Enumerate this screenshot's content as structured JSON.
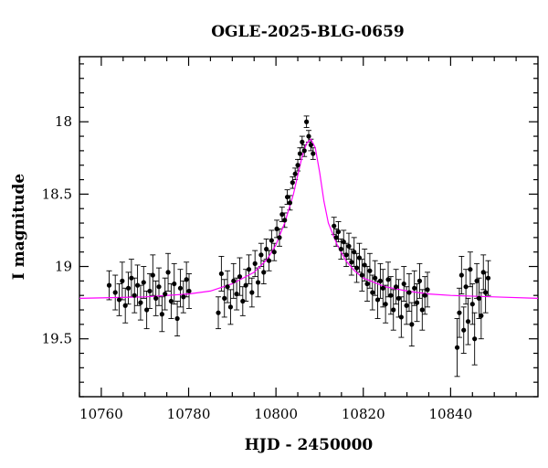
{
  "chart_data": {
    "type": "scatter",
    "title": "OGLE-2025-BLG-0659",
    "xlabel": "HJD - 2450000",
    "ylabel": "I magnitude",
    "xlim": [
      10755,
      10860
    ],
    "ylim": [
      19.9,
      17.55
    ],
    "y_inverted": true,
    "x_ticks": [
      10760,
      10780,
      10800,
      10820,
      10840
    ],
    "y_ticks": [
      18,
      18.5,
      19,
      19.5
    ],
    "x_tick_labels": [
      "10760",
      "10780",
      "10800",
      "10820",
      "10840"
    ],
    "y_tick_labels": [
      "18",
      "18.5",
      "19",
      "19.5"
    ],
    "grid": false,
    "colors": {
      "data": "#000000",
      "model": "#ff00ff"
    },
    "model": {
      "name": "",
      "x": [
        10755,
        10770,
        10780,
        10785,
        10790,
        10795,
        10798,
        10800,
        10802,
        10804,
        10805,
        10806,
        10807,
        10808,
        10809,
        10810,
        10811,
        10812,
        10814,
        10816,
        10818,
        10820,
        10825,
        10830,
        10835,
        10840,
        10850,
        10860
      ],
      "y": [
        19.22,
        19.21,
        19.19,
        19.17,
        19.12,
        19.04,
        18.95,
        18.85,
        18.7,
        18.5,
        18.37,
        18.24,
        18.15,
        18.12,
        18.18,
        18.35,
        18.55,
        18.7,
        18.85,
        18.96,
        19.03,
        19.08,
        19.14,
        19.17,
        19.19,
        19.2,
        19.21,
        19.22
      ]
    },
    "series": [
      {
        "name": "",
        "x": [
          10761.8,
          10763.2,
          10764.1,
          10764.8,
          10765.5,
          10766.2,
          10766.9,
          10767.6,
          10768.3,
          10769.0,
          10769.7,
          10770.4,
          10771.1,
          10771.8,
          10772.5,
          10773.2,
          10773.9,
          10774.6,
          10775.3,
          10776.0,
          10776.7,
          10777.4,
          10778.1,
          10778.8,
          10779.5,
          10780.1,
          10786.8,
          10787.5,
          10788.2,
          10788.9,
          10789.6,
          10790.3,
          10791.0,
          10791.7,
          10792.4,
          10793.1,
          10793.8,
          10794.5,
          10795.2,
          10795.9,
          10796.6,
          10797.2,
          10797.8,
          10798.4,
          10799.0,
          10799.6,
          10800.2,
          10800.8,
          10801.4,
          10802.0,
          10802.6,
          10803.2,
          10803.8,
          10804.4,
          10805.0,
          10805.5,
          10806.0,
          10806.5,
          10807.0,
          10807.5,
          10808.0,
          10808.5,
          10813.3,
          10813.8,
          10814.3,
          10814.9,
          10815.5,
          10816.1,
          10816.7,
          10817.3,
          10817.9,
          10818.5,
          10819.1,
          10819.7,
          10820.3,
          10820.9,
          10821.5,
          10822.1,
          10822.7,
          10823.3,
          10823.9,
          10824.5,
          10825.1,
          10825.7,
          10826.3,
          10826.9,
          10827.5,
          10828.1,
          10828.7,
          10829.3,
          10829.9,
          10830.5,
          10831.1,
          10831.7,
          10832.3,
          10832.9,
          10833.5,
          10834.1,
          10834.7,
          10841.5,
          10842.0,
          10842.5,
          10843.0,
          10843.5,
          10844.0,
          10844.5,
          10845.0,
          10845.5,
          10846.0,
          10846.5,
          10847.0,
          10847.5,
          10848.0,
          10848.6
        ],
        "y": [
          19.13,
          19.18,
          19.23,
          19.1,
          19.27,
          19.15,
          19.08,
          19.2,
          19.13,
          19.25,
          19.11,
          19.3,
          19.17,
          19.06,
          19.22,
          19.14,
          19.33,
          19.19,
          19.04,
          19.24,
          19.12,
          19.36,
          19.15,
          19.21,
          19.09,
          19.17,
          19.32,
          19.05,
          19.22,
          19.14,
          19.28,
          19.1,
          19.19,
          19.07,
          19.24,
          19.13,
          19.02,
          19.18,
          18.98,
          19.11,
          18.92,
          19.04,
          18.88,
          18.96,
          18.82,
          18.9,
          18.74,
          18.8,
          18.64,
          18.68,
          18.52,
          18.56,
          18.42,
          18.36,
          18.3,
          18.22,
          18.14,
          18.2,
          18.0,
          18.1,
          18.16,
          18.22,
          18.72,
          18.8,
          18.76,
          18.88,
          18.83,
          18.92,
          18.86,
          18.97,
          18.9,
          19.01,
          18.94,
          19.06,
          18.99,
          19.12,
          19.03,
          19.18,
          19.08,
          19.23,
          19.1,
          19.15,
          19.26,
          19.09,
          19.2,
          19.3,
          19.14,
          19.22,
          19.35,
          19.12,
          19.27,
          19.18,
          19.4,
          19.15,
          19.25,
          19.1,
          19.3,
          19.2,
          19.16,
          19.56,
          19.32,
          19.06,
          19.44,
          19.14,
          19.38,
          19.02,
          19.26,
          19.5,
          19.1,
          19.22,
          19.34,
          19.04,
          19.18,
          19.08
        ],
        "yerr": [
          0.1,
          0.12,
          0.11,
          0.13,
          0.12,
          0.11,
          0.13,
          0.12,
          0.14,
          0.12,
          0.11,
          0.13,
          0.12,
          0.14,
          0.12,
          0.13,
          0.12,
          0.11,
          0.13,
          0.12,
          0.14,
          0.12,
          0.13,
          0.11,
          0.12,
          0.12,
          0.11,
          0.12,
          0.13,
          0.11,
          0.12,
          0.12,
          0.11,
          0.13,
          0.1,
          0.11,
          0.1,
          0.1,
          0.09,
          0.1,
          0.08,
          0.08,
          0.07,
          0.07,
          0.07,
          0.06,
          0.06,
          0.06,
          0.05,
          0.05,
          0.05,
          0.05,
          0.04,
          0.04,
          0.04,
          0.04,
          0.04,
          0.04,
          0.04,
          0.04,
          0.04,
          0.04,
          0.06,
          0.06,
          0.07,
          0.07,
          0.08,
          0.08,
          0.09,
          0.09,
          0.1,
          0.1,
          0.1,
          0.11,
          0.11,
          0.12,
          0.12,
          0.12,
          0.12,
          0.13,
          0.12,
          0.13,
          0.13,
          0.12,
          0.13,
          0.14,
          0.12,
          0.13,
          0.14,
          0.12,
          0.13,
          0.13,
          0.15,
          0.12,
          0.13,
          0.12,
          0.14,
          0.13,
          0.12,
          0.2,
          0.17,
          0.13,
          0.16,
          0.12,
          0.16,
          0.12,
          0.14,
          0.18,
          0.12,
          0.14,
          0.16,
          0.12,
          0.14,
          0.12
        ]
      }
    ]
  }
}
